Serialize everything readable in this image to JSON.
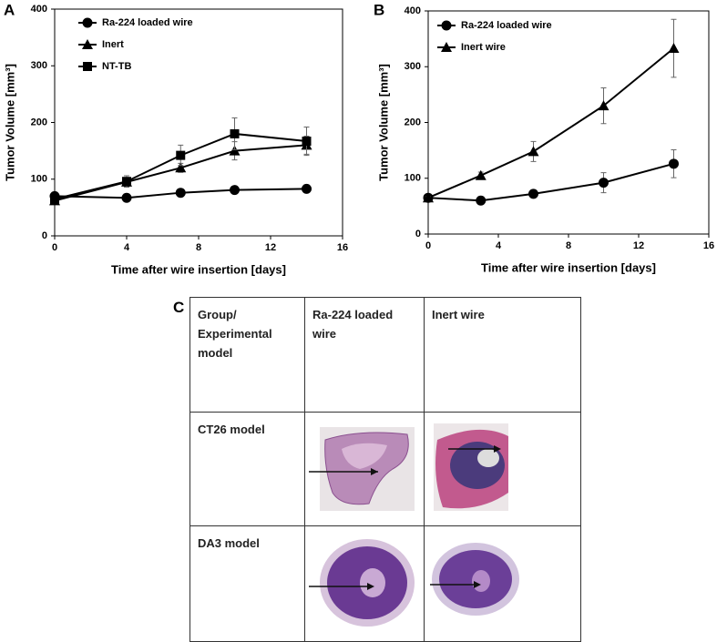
{
  "chart_data": [
    {
      "type": "line",
      "panel": "A",
      "ylabel": "Tumor Volume [mm³]",
      "xlabel": "Time after wire insertion [days]",
      "xlim": [
        0,
        16
      ],
      "xticks": [
        0,
        4,
        8,
        12,
        16
      ],
      "ylim": [
        0,
        400
      ],
      "yticks": [
        0,
        100,
        200,
        300,
        400
      ],
      "series": [
        {
          "name": "Ra-224 loaded wire",
          "color": "#000000",
          "marker": "circle",
          "x": [
            0,
            4,
            7,
            10,
            14
          ],
          "values": [
            70,
            67,
            76,
            81,
            83
          ],
          "errors": [
            3,
            3,
            3,
            3,
            3
          ]
        },
        {
          "name": "Inert",
          "color": "#000000",
          "marker": "triangle",
          "x": [
            0,
            4,
            7,
            10,
            14
          ],
          "values": [
            62,
            95,
            120,
            150,
            160
          ],
          "errors": [
            3,
            8,
            8,
            16,
            16
          ]
        },
        {
          "name": "NT-TB",
          "color": "#000000",
          "marker": "square",
          "x": [
            0,
            4,
            7,
            10,
            14
          ],
          "values": [
            65,
            96,
            142,
            180,
            167
          ],
          "errors": [
            3,
            10,
            18,
            28,
            25
          ]
        }
      ]
    },
    {
      "type": "line",
      "panel": "B",
      "ylabel": "Tumor Volume [mm³]",
      "xlabel": "Time after wire insertion [days]",
      "xlim": [
        0,
        16
      ],
      "xticks": [
        0,
        4,
        8,
        12,
        16
      ],
      "ylim": [
        0,
        400
      ],
      "yticks": [
        0,
        100,
        200,
        300,
        400
      ],
      "series": [
        {
          "name": "Ra-224 loaded wire",
          "color": "#000000",
          "marker": "circle",
          "x": [
            0,
            3,
            6,
            10,
            14
          ],
          "values": [
            65,
            60,
            72,
            92,
            126
          ],
          "errors": [
            2,
            3,
            5,
            18,
            25
          ]
        },
        {
          "name": "Inert wire",
          "color": "#000000",
          "marker": "triangle",
          "x": [
            0,
            3,
            6,
            10,
            14
          ],
          "values": [
            65,
            105,
            148,
            230,
            333
          ],
          "errors": [
            2,
            6,
            18,
            32,
            52
          ]
        }
      ]
    }
  ],
  "panel_c": {
    "panel": "C",
    "header": [
      "Group/ Experimental model",
      "Ra-224 loaded wire",
      "Inert wire"
    ],
    "rows": [
      [
        "CT26 model"
      ],
      [
        "DA3 model"
      ]
    ]
  }
}
